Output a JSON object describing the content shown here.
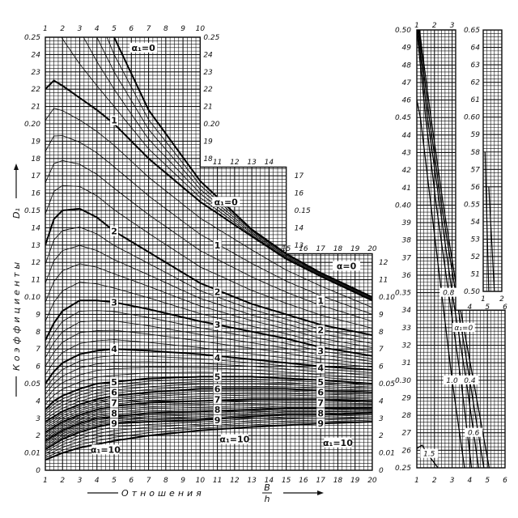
{
  "chart_data": [
    {
      "type": "line",
      "ylabel": "Коэффициенты",
      "ylabel_symbol": "D₁",
      "xlabel": "Отношения",
      "xlabel_fraction": {
        "numerator": "B",
        "denominator": "h"
      },
      "xlim": [
        1,
        20
      ],
      "ylim": [
        0,
        0.25
      ],
      "grid": true,
      "x_ticks_bottom": [
        "1",
        "2",
        "3",
        "4",
        "5",
        "6",
        "7",
        "8",
        "9",
        "10",
        "11",
        "12",
        "13",
        "14",
        "15",
        "16",
        "17",
        "18",
        "19",
        "20"
      ],
      "x_ticks_top_1": [
        "1",
        "2",
        "3",
        "4",
        "5",
        "6",
        "7",
        "8",
        "9",
        "10"
      ],
      "x_ticks_top_2": [
        "11",
        "12",
        "13",
        "14"
      ],
      "x_ticks_top_3": [
        "15",
        "16",
        "17",
        "18",
        "19",
        "20"
      ],
      "y_ticks_left": [
        {
          "v": 0,
          "t": "0"
        },
        {
          "v": 0.01,
          "t": "0.01"
        },
        {
          "v": 0.02,
          "t": "2"
        },
        {
          "v": 0.03,
          "t": "3"
        },
        {
          "v": 0.04,
          "t": "4"
        },
        {
          "v": 0.05,
          "t": "0.05"
        },
        {
          "v": 0.06,
          "t": "6"
        },
        {
          "v": 0.07,
          "t": "7"
        },
        {
          "v": 0.08,
          "t": "8"
        },
        {
          "v": 0.09,
          "t": "9"
        },
        {
          "v": 0.1,
          "t": "0.10"
        },
        {
          "v": 0.11,
          "t": "11"
        },
        {
          "v": 0.12,
          "t": "12"
        },
        {
          "v": 0.13,
          "t": "13"
        },
        {
          "v": 0.14,
          "t": "14"
        },
        {
          "v": 0.15,
          "t": "0.15"
        },
        {
          "v": 0.16,
          "t": "16"
        },
        {
          "v": 0.17,
          "t": "17"
        },
        {
          "v": 0.18,
          "t": "18"
        },
        {
          "v": 0.19,
          "t": "19"
        },
        {
          "v": 0.2,
          "t": "0.20"
        },
        {
          "v": 0.21,
          "t": "21"
        },
        {
          "v": 0.22,
          "t": "22"
        },
        {
          "v": 0.23,
          "t": "23"
        },
        {
          "v": 0.24,
          "t": "24"
        },
        {
          "v": 0.25,
          "t": "0.25"
        }
      ],
      "y_ticks_right_1": [
        {
          "v": 0.25,
          "t": "0.25"
        },
        {
          "v": 0.24,
          "t": "24"
        },
        {
          "v": 0.23,
          "t": "23"
        },
        {
          "v": 0.22,
          "t": "22"
        },
        {
          "v": 0.21,
          "t": "21"
        },
        {
          "v": 0.2,
          "t": "0.20"
        },
        {
          "v": 0.19,
          "t": "19"
        },
        {
          "v": 0.18,
          "t": "18"
        }
      ],
      "y_ticks_right_2": [
        {
          "v": 0.17,
          "t": "17"
        },
        {
          "v": 0.16,
          "t": "16"
        },
        {
          "v": 0.15,
          "t": "0.15"
        },
        {
          "v": 0.14,
          "t": "14"
        },
        {
          "v": 0.13,
          "t": "13"
        }
      ],
      "y_ticks_right_3": [
        {
          "v": 0.12,
          "t": "12"
        },
        {
          "v": 0.11,
          "t": "11"
        },
        {
          "v": 0.1,
          "t": "0.10"
        },
        {
          "v": 0.09,
          "t": "9"
        },
        {
          "v": 0.08,
          "t": "8"
        },
        {
          "v": 0.07,
          "t": "7"
        },
        {
          "v": 0.06,
          "t": "6"
        },
        {
          "v": 0.05,
          "t": "0.05"
        },
        {
          "v": 0.04,
          "t": "4"
        },
        {
          "v": 0.03,
          "t": "3"
        },
        {
          "v": 0.02,
          "t": "2"
        },
        {
          "v": 0.01,
          "t": "0.01"
        },
        {
          "v": 0,
          "t": "0"
        }
      ],
      "x": [
        1,
        1.5,
        2,
        3,
        4,
        5,
        7,
        10,
        13,
        15,
        17,
        20
      ],
      "series": [
        {
          "name": "α₁=0",
          "values": [
            null,
            null,
            null,
            null,
            null,
            0.25,
            0.208,
            0.167,
            0.139,
            0.125,
            0.114,
            0.1
          ]
        },
        {
          "name": "1",
          "values": [
            0.22,
            0.225,
            0.222,
            0.215,
            0.208,
            0.2,
            0.18,
            0.155,
            0.135,
            0.122,
            0.112,
            0.098
          ]
        },
        {
          "name": "2",
          "values": [
            0.13,
            0.145,
            0.15,
            0.151,
            0.146,
            0.138,
            0.126,
            0.108,
            0.096,
            0.09,
            0.084,
            0.078
          ]
        },
        {
          "name": "3",
          "values": [
            0.075,
            0.085,
            0.092,
            0.098,
            0.098,
            0.097,
            0.093,
            0.086,
            0.08,
            0.076,
            0.071,
            0.066
          ]
        },
        {
          "name": "4",
          "values": [
            0.05,
            0.057,
            0.062,
            0.067,
            0.069,
            0.07,
            0.069,
            0.067,
            0.064,
            0.062,
            0.06,
            0.058
          ]
        },
        {
          "name": "5",
          "values": [
            0.035,
            0.04,
            0.043,
            0.047,
            0.05,
            0.051,
            0.053,
            0.054,
            0.054,
            0.053,
            0.052,
            0.05
          ]
        },
        {
          "name": "6",
          "values": [
            0.028,
            0.031,
            0.034,
            0.038,
            0.041,
            0.043,
            0.045,
            0.047,
            0.047,
            0.047,
            0.046,
            0.045
          ]
        },
        {
          "name": "7",
          "values": [
            0.022,
            0.025,
            0.028,
            0.032,
            0.035,
            0.037,
            0.039,
            0.04,
            0.041,
            0.041,
            0.041,
            0.04
          ]
        },
        {
          "name": "8",
          "values": [
            0.017,
            0.02,
            0.023,
            0.027,
            0.03,
            0.031,
            0.033,
            0.034,
            0.035,
            0.036,
            0.036,
            0.036
          ]
        },
        {
          "name": "9",
          "values": [
            0.012,
            0.015,
            0.018,
            0.022,
            0.025,
            0.027,
            0.028,
            0.029,
            0.031,
            0.032,
            0.032,
            0.033
          ]
        },
        {
          "name": "α₁=10",
          "values": [
            0.006,
            0.008,
            0.01,
            0.013,
            0.015,
            0.017,
            0.02,
            0.023,
            0.025,
            0.026,
            0.027,
            0.028
          ]
        }
      ],
      "curve_labels": [
        "α₁=0",
        "1",
        "α₁=0",
        "1",
        "α=0",
        "1",
        "2",
        "2",
        "2",
        "3",
        "3",
        "3",
        "4",
        "4",
        "4",
        "5",
        "5",
        "5",
        "6",
        "6",
        "6",
        "7",
        "7",
        "7",
        "8",
        "8",
        "8",
        "9",
        "9",
        "9",
        "α₁=10",
        "α₁=10",
        "α₁=10"
      ]
    },
    {
      "type": "line",
      "ylim": [
        0.25,
        0.65
      ],
      "grid": true,
      "x_ticks_top": [
        "1",
        "2",
        "3"
      ],
      "x_ticks_step": [
        "4",
        "5",
        "6"
      ],
      "x_ticks_col2": [
        "1",
        "2"
      ],
      "x_ticks_bottom": [
        "1",
        "2",
        "3",
        "4",
        "5",
        "6"
      ],
      "y_ticks_left": [
        {
          "v": 0.5,
          "t": "0.50"
        },
        {
          "v": 0.49,
          "t": "49"
        },
        {
          "v": 0.48,
          "t": "48"
        },
        {
          "v": 0.47,
          "t": "47"
        },
        {
          "v": 0.46,
          "t": "46"
        },
        {
          "v": 0.45,
          "t": "0.45"
        },
        {
          "v": 0.44,
          "t": "44"
        },
        {
          "v": 0.43,
          "t": "43"
        },
        {
          "v": 0.42,
          "t": "42"
        },
        {
          "v": 0.41,
          "t": "41"
        },
        {
          "v": 0.4,
          "t": "0.40"
        },
        {
          "v": 0.39,
          "t": "39"
        },
        {
          "v": 0.38,
          "t": "38"
        },
        {
          "v": 0.37,
          "t": "37"
        },
        {
          "v": 0.36,
          "t": "36"
        },
        {
          "v": 0.35,
          "t": "0.35"
        },
        {
          "v": 0.34,
          "t": "34"
        },
        {
          "v": 0.33,
          "t": "33"
        },
        {
          "v": 0.32,
          "t": "32"
        },
        {
          "v": 0.31,
          "t": "31"
        },
        {
          "v": 0.3,
          "t": "0.30"
        },
        {
          "v": 0.29,
          "t": "29"
        },
        {
          "v": 0.28,
          "t": "28"
        },
        {
          "v": 0.27,
          "t": "27"
        },
        {
          "v": 0.26,
          "t": "26"
        },
        {
          "v": 0.25,
          "t": "0.25"
        }
      ],
      "y_ticks_col2": [
        {
          "v": 0.65,
          "t": "0.65"
        },
        {
          "v": 0.64,
          "t": "64"
        },
        {
          "v": 0.63,
          "t": "63"
        },
        {
          "v": 0.62,
          "t": "62"
        },
        {
          "v": 0.61,
          "t": "61"
        },
        {
          "v": 0.6,
          "t": "0.60"
        },
        {
          "v": 0.59,
          "t": "59"
        },
        {
          "v": 0.58,
          "t": "58"
        },
        {
          "v": 0.57,
          "t": "57"
        },
        {
          "v": 0.56,
          "t": "56"
        },
        {
          "v": 0.55,
          "t": "0.55"
        },
        {
          "v": 0.54,
          "t": "54"
        },
        {
          "v": 0.53,
          "t": "53"
        },
        {
          "v": 0.52,
          "t": "52"
        },
        {
          "v": 0.51,
          "t": "51"
        },
        {
          "v": 0.5,
          "t": "0.50"
        }
      ],
      "series": [
        {
          "name": "α₁=0",
          "points": [
            [
              1.15,
              0.5
            ],
            [
              1.8,
              0.45
            ],
            [
              2.5,
              0.4
            ],
            [
              3.3,
              0.35
            ],
            [
              4.2,
              0.3
            ],
            [
              5.1,
              0.25
            ]
          ]
        },
        {
          "name": "0.4",
          "points": [
            [
              1.1,
              0.5
            ],
            [
              1.7,
              0.45
            ],
            [
              2.4,
              0.4
            ],
            [
              3.2,
              0.35
            ],
            [
              4.0,
              0.3
            ],
            [
              4.8,
              0.25
            ]
          ]
        },
        {
          "name": "0.6",
          "points": [
            [
              1.05,
              0.5
            ],
            [
              1.6,
              0.45
            ],
            [
              2.3,
              0.4
            ],
            [
              3.0,
              0.35
            ],
            [
              3.8,
              0.3
            ],
            [
              4.5,
              0.25
            ]
          ]
        },
        {
          "name": "0.8",
          "points": [
            [
              1.0,
              0.5
            ],
            [
              1.5,
              0.45
            ],
            [
              2.1,
              0.4
            ],
            [
              2.8,
              0.35
            ],
            [
              3.5,
              0.3
            ],
            [
              4.1,
              0.25
            ]
          ]
        },
        {
          "name": "1.0",
          "points": [
            [
              1.0,
              0.46
            ],
            [
              1.2,
              0.45
            ],
            [
              1.8,
              0.4
            ],
            [
              2.4,
              0.35
            ],
            [
              3.0,
              0.3
            ],
            [
              3.7,
              0.25
            ]
          ]
        },
        {
          "name": "1.5",
          "points": [
            [
              1.0,
              0.261
            ],
            [
              1.3,
              0.263
            ],
            [
              1.6,
              0.258
            ],
            [
              2.2,
              0.25
            ]
          ]
        }
      ],
      "series_col2": [
        {
          "points": [
            [
              1.1,
              0.58
            ],
            [
              1.3,
              0.5
            ]
          ]
        },
        {
          "points": [
            [
              1.3,
              0.56
            ],
            [
              1.6,
              0.5
            ]
          ]
        }
      ]
    }
  ]
}
